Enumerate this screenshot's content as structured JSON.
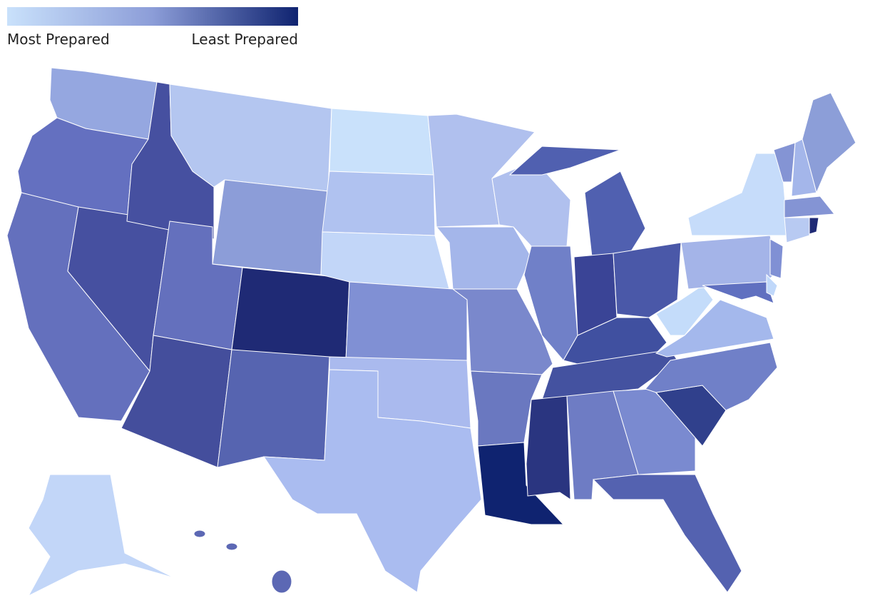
{
  "legend": {
    "low_label": "Most Prepared",
    "high_label": "Least Prepared",
    "colors": [
      "#c9e1fb",
      "#8c9dd8",
      "#0f2370"
    ]
  },
  "map": {
    "fills": [
      "#95a7e0",
      "#6470c0",
      "#6470bd",
      "#4650a0",
      "#4650a0",
      "#b4c6f0",
      "#8c9dd8",
      "#6470bd",
      "#1f2a75",
      "#444e9c",
      "#5664b0",
      "#c9e1fb",
      "#b0c2f0",
      "#c2d6f8",
      "#8090d4",
      "#aabaee",
      "#aabcf0",
      "#b0c0ee",
      "#a4b6ea",
      "#7a88cc",
      "#6a78c0",
      "#0f2370",
      "#b0c0ee",
      "#7080c8",
      "#5060b0",
      "#5060b0",
      "#3a4496",
      "#4a58a8",
      "#4050a0",
      "#4452a0",
      "#2a3580",
      "#6e7cc4",
      "#7a8ad0",
      "#5462b0",
      "#30408c",
      "#7080c8",
      "#a4b8ec",
      "#c4dcfa",
      "#a4b4e8",
      "#c6dcfa",
      "#6070c0",
      "#8090d4",
      "#c0d8fa",
      "#8494d4",
      "#a4b6ea",
      "#8c9ed8",
      "#8494d4",
      "#b8caf2",
      "#1f2a75",
      "#c2d6f8",
      "#5c68b4",
      "#5c68b4",
      "#5c68b4"
    ]
  }
}
